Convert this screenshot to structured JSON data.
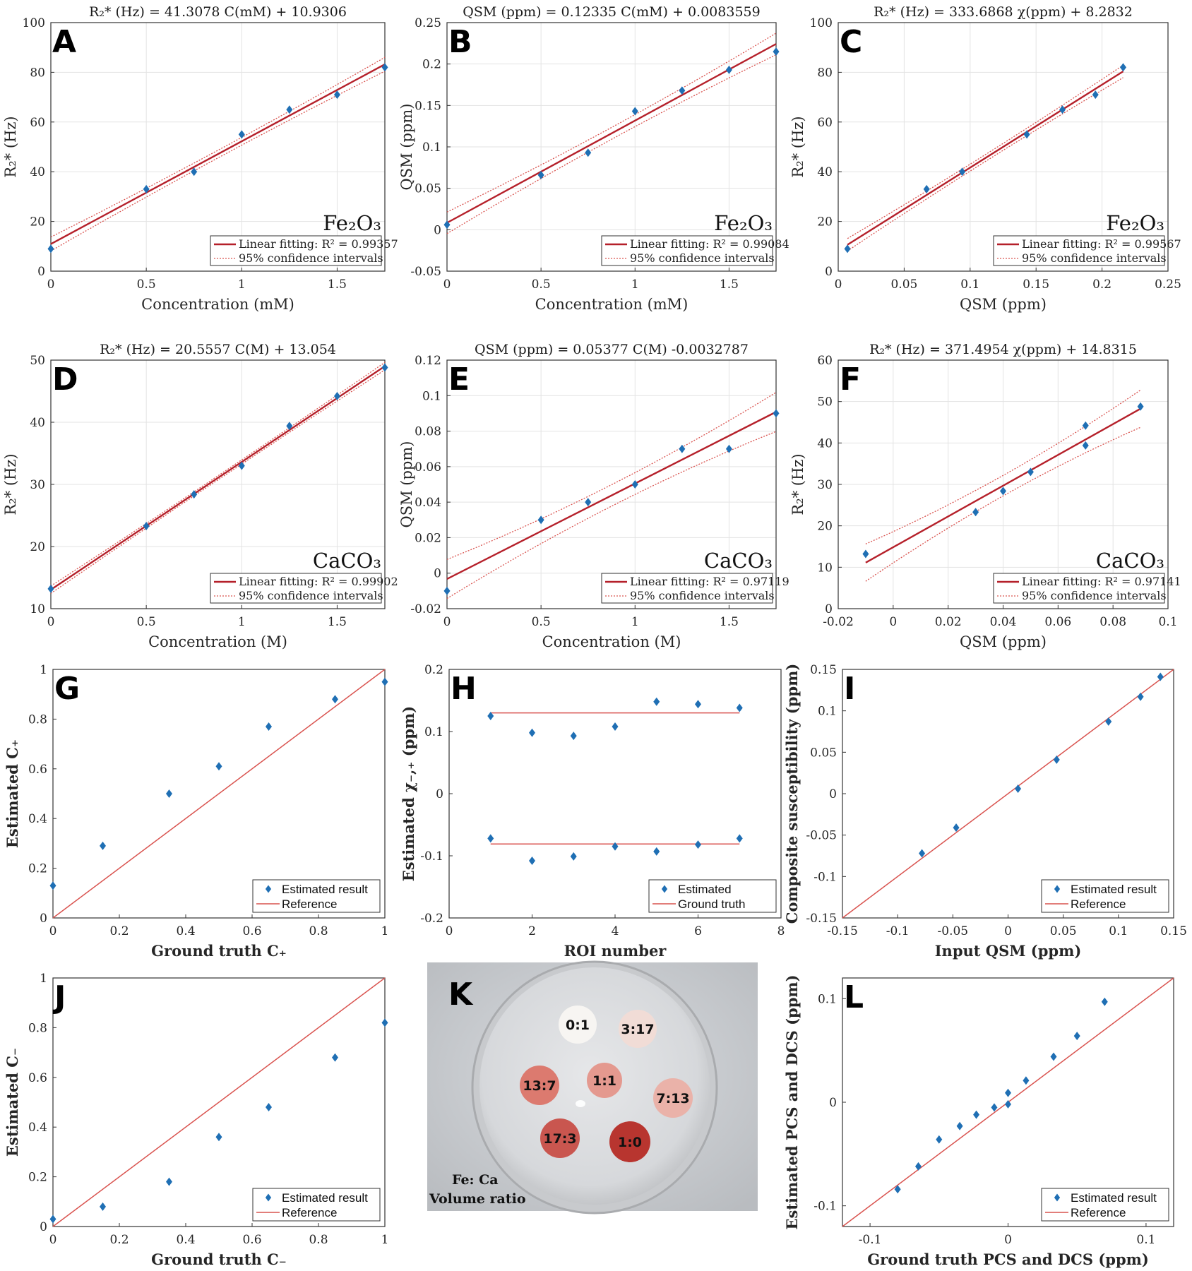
{
  "colors": {
    "marker": "#1f6fb4",
    "fit": "#b5202a",
    "ref": "#d9534f",
    "grid": "#e3e3e3"
  },
  "chart_data": [
    {
      "id": "A",
      "type": "scatter",
      "title": "R₂* (Hz) = 41.3078 C(mM) + 10.9306",
      "xlabel": "Concentration (mM)",
      "ylabel": "R₂* (Hz)",
      "xlim": [
        0,
        1.75
      ],
      "ylim": [
        0,
        100
      ],
      "xticks": [
        0,
        0.5,
        1,
        1.5
      ],
      "yticks": [
        0,
        20,
        40,
        60,
        80,
        100
      ],
      "x": [
        0,
        0.5,
        0.75,
        1,
        1.25,
        1.5,
        1.75
      ],
      "y": [
        9,
        33,
        40,
        55,
        65,
        71,
        82
      ],
      "fit": {
        "slope": 41.3078,
        "intercept": 10.9306,
        "ci": 2.8
      },
      "compound": "Fe₂O₃",
      "legend": [
        "Linear fitting: R² = 0.99357",
        "95% confidence intervals"
      ]
    },
    {
      "id": "B",
      "type": "scatter",
      "title": "QSM (ppm) = 0.12335 C(mM) + 0.0083559",
      "xlabel": "Concentration (mM)",
      "ylabel": "QSM (ppm)",
      "xlim": [
        0,
        1.75
      ],
      "ylim": [
        -0.05,
        0.25
      ],
      "xticks": [
        0,
        0.5,
        1,
        1.5
      ],
      "yticks": [
        -0.05,
        0,
        0.05,
        0.1,
        0.15,
        0.2,
        0.25
      ],
      "x": [
        0,
        0.5,
        0.75,
        1,
        1.25,
        1.5,
        1.75
      ],
      "y": [
        0.006,
        0.066,
        0.093,
        0.143,
        0.168,
        0.193,
        0.215
      ],
      "fit": {
        "slope": 0.12335,
        "intercept": 0.0083559,
        "ci": 0.013
      },
      "compound": "Fe₂O₃",
      "legend": [
        "Linear fitting: R² = 0.99084",
        "95% confidence intervals"
      ]
    },
    {
      "id": "C",
      "type": "scatter",
      "title": "R₂* (Hz) = 333.6868 χ(ppm) + 8.2832",
      "xlabel": "QSM (ppm)",
      "ylabel": "R₂* (Hz)",
      "xlim": [
        0,
        0.25
      ],
      "ylim": [
        0,
        100
      ],
      "xticks": [
        0,
        0.05,
        0.1,
        0.15,
        0.2,
        0.25
      ],
      "yticks": [
        0,
        20,
        40,
        60,
        80,
        100
      ],
      "x": [
        0.007,
        0.067,
        0.094,
        0.143,
        0.17,
        0.195,
        0.216
      ],
      "y": [
        9,
        33,
        40,
        55,
        65,
        71,
        82
      ],
      "fit": {
        "slope": 333.6868,
        "intercept": 8.2832,
        "ci": 2.5,
        "xrange": [
          0.007,
          0.216
        ]
      },
      "compound": "Fe₂O₃",
      "legend": [
        "Linear fitting: R² = 0.99567",
        "95% confidence intervals"
      ]
    },
    {
      "id": "D",
      "type": "scatter",
      "title": "R₂* (Hz) = 20.5557 C(M) + 13.054",
      "xlabel": "Concentration (M)",
      "ylabel": "R₂* (Hz)",
      "xlim": [
        0,
        1.75
      ],
      "ylim": [
        10,
        50
      ],
      "xticks": [
        0,
        0.5,
        1,
        1.5
      ],
      "yticks": [
        10,
        20,
        30,
        40,
        50
      ],
      "x": [
        0,
        0.5,
        0.75,
        1,
        1.25,
        1.5,
        1.75
      ],
      "y": [
        13.2,
        23.3,
        28.4,
        33,
        39.4,
        44.2,
        48.8
      ],
      "fit": {
        "slope": 20.5557,
        "intercept": 13.054,
        "ci": 0.6
      },
      "compound": "CaCO₃",
      "legend": [
        "Linear fitting: R² = 0.99902",
        "95% confidence intervals"
      ]
    },
    {
      "id": "E",
      "type": "scatter",
      "title": "QSM (ppm) = 0.05377 C(M) -0.0032787",
      "xlabel": "Concentration (M)",
      "ylabel": "QSM (ppm)",
      "xlim": [
        0,
        1.75
      ],
      "ylim": [
        -0.02,
        0.12
      ],
      "xticks": [
        0,
        0.5,
        1,
        1.5
      ],
      "yticks": [
        -0.02,
        0,
        0.02,
        0.04,
        0.06,
        0.08,
        0.1,
        0.12
      ],
      "x": [
        0,
        0.5,
        0.75,
        1,
        1.25,
        1.5,
        1.75
      ],
      "y": [
        -0.01,
        0.03,
        0.04,
        0.05,
        0.07,
        0.07,
        0.09
      ],
      "fit": {
        "slope": 0.05377,
        "intercept": -0.0032787,
        "ci": 0.011
      },
      "compound": "CaCO₃",
      "legend": [
        "Linear fitting: R² = 0.97119",
        "95% confidence intervals"
      ]
    },
    {
      "id": "F",
      "type": "scatter",
      "title": "R₂* (Hz) = 371.4954 χ(ppm) + 14.8315",
      "xlabel": "QSM (ppm)",
      "ylabel": "R₂* (Hz)",
      "xlim": [
        -0.02,
        0.1
      ],
      "ylim": [
        0,
        60
      ],
      "xticks": [
        -0.02,
        0,
        0.02,
        0.04,
        0.06,
        0.08,
        0.1
      ],
      "yticks": [
        0,
        10,
        20,
        30,
        40,
        50,
        60
      ],
      "x": [
        -0.01,
        0.03,
        0.04,
        0.05,
        0.07,
        0.07,
        0.09
      ],
      "y": [
        13.2,
        23.3,
        28.4,
        33,
        39.4,
        44.2,
        48.8
      ],
      "fit": {
        "slope": 371.4954,
        "intercept": 14.8315,
        "ci": 4.5,
        "xrange": [
          -0.01,
          0.09
        ]
      },
      "compound": "CaCO₃",
      "legend": [
        "Linear fitting: R² = 0.97141",
        "95% confidence intervals"
      ]
    },
    {
      "id": "G",
      "type": "scatter",
      "title": "",
      "xlabel": "Ground truth C₊",
      "ylabel": "Estimated C₊",
      "xlim": [
        0,
        1
      ],
      "ylim": [
        0,
        1
      ],
      "xticks": [
        0,
        0.2,
        0.4,
        0.6,
        0.8,
        1
      ],
      "yticks": [
        0,
        0.2,
        0.4,
        0.6,
        0.8,
        1
      ],
      "x": [
        0,
        0.15,
        0.35,
        0.5,
        0.65,
        0.85,
        1
      ],
      "y": [
        0.13,
        0.29,
        0.5,
        0.61,
        0.77,
        0.88,
        0.95
      ],
      "reference": "identity",
      "legend": [
        "Estimated result",
        "Reference"
      ]
    },
    {
      "id": "H",
      "type": "scatter",
      "title": "",
      "xlabel": "ROI number",
      "ylabel": "Estimated χ₋,₊ (ppm)",
      "xlim": [
        0,
        8
      ],
      "ylim": [
        -0.2,
        0.2
      ],
      "xticks": [
        0,
        2,
        4,
        6,
        8
      ],
      "yticks": [
        -0.2,
        -0.1,
        0,
        0.1,
        0.2
      ],
      "x": [
        1,
        2,
        3,
        4,
        5,
        6,
        7,
        1,
        2,
        3,
        4,
        5,
        6,
        7
      ],
      "y": [
        0.125,
        0.098,
        0.093,
        0.108,
        0.148,
        0.144,
        0.138,
        -0.072,
        -0.108,
        -0.101,
        -0.085,
        -0.093,
        -0.082,
        -0.072
      ],
      "truth": [
        0.13,
        -0.081
      ],
      "truth_xrange": [
        1,
        7
      ],
      "legend": [
        "Estimated",
        "Ground truth"
      ]
    },
    {
      "id": "I",
      "type": "scatter",
      "title": "",
      "xlabel": "Input QSM (ppm)",
      "ylabel": "Composite susceptibility (ppm)",
      "xlim": [
        -0.15,
        0.15
      ],
      "ylim": [
        -0.15,
        0.15
      ],
      "xticks": [
        -0.15,
        -0.1,
        -0.05,
        0,
        0.05,
        0.1,
        0.15
      ],
      "yticks": [
        -0.15,
        -0.1,
        -0.05,
        0,
        0.05,
        0.1,
        0.15
      ],
      "x": [
        -0.078,
        -0.047,
        0.009,
        0.044,
        0.091,
        0.12,
        0.138
      ],
      "y": [
        -0.072,
        -0.041,
        0.006,
        0.041,
        0.087,
        0.117,
        0.141
      ],
      "reference": "identity",
      "legend": [
        "Estimated result",
        "Reference"
      ]
    },
    {
      "id": "J",
      "type": "scatter",
      "title": "",
      "xlabel": "Ground truth C₋",
      "ylabel": "Estimated C₋",
      "xlim": [
        0,
        1
      ],
      "ylim": [
        0,
        1
      ],
      "xticks": [
        0,
        0.2,
        0.4,
        0.6,
        0.8,
        1
      ],
      "yticks": [
        0,
        0.2,
        0.4,
        0.6,
        0.8,
        1
      ],
      "x": [
        0,
        0.15,
        0.35,
        0.5,
        0.65,
        0.85,
        1
      ],
      "y": [
        0.03,
        0.08,
        0.18,
        0.36,
        0.48,
        0.68,
        0.82
      ],
      "reference": "identity",
      "legend": [
        "Estimated result",
        "Reference"
      ]
    },
    {
      "id": "L",
      "type": "scatter",
      "title": "",
      "xlabel": "Ground truth PCS and DCS (ppm)",
      "ylabel": "Estimated PCS and DCS (ppm)",
      "xlim": [
        -0.12,
        0.12
      ],
      "ylim": [
        -0.12,
        0.12
      ],
      "xticks": [
        -0.1,
        0,
        0.1
      ],
      "yticks": [
        -0.1,
        0,
        0.1
      ],
      "x": [
        -0.08,
        -0.065,
        -0.05,
        -0.035,
        -0.023,
        -0.01,
        0,
        0,
        0.013,
        0.033,
        0.05,
        0.07
      ],
      "y": [
        -0.084,
        -0.062,
        -0.036,
        -0.023,
        -0.012,
        -0.005,
        -0.002,
        0.009,
        0.021,
        0.044,
        0.064,
        0.097
      ],
      "reference": "identity",
      "legend": [
        "Estimated result",
        "Reference"
      ]
    }
  ],
  "panel_k": {
    "letter": "K",
    "caption_line1": "Fe: Ca",
    "caption_line2": "Volume ratio",
    "wells": [
      {
        "label": "0:1",
        "color": "#f7f5f2"
      },
      {
        "label": "3:17",
        "color": "#f1dcd6"
      },
      {
        "label": "13:7",
        "color": "#dc7a6f"
      },
      {
        "label": "1:1",
        "color": "#e4998f"
      },
      {
        "label": "7:13",
        "color": "#eab2a9"
      },
      {
        "label": "17:3",
        "color": "#c9564f"
      },
      {
        "label": "1:0",
        "color": "#b8352f"
      }
    ]
  }
}
